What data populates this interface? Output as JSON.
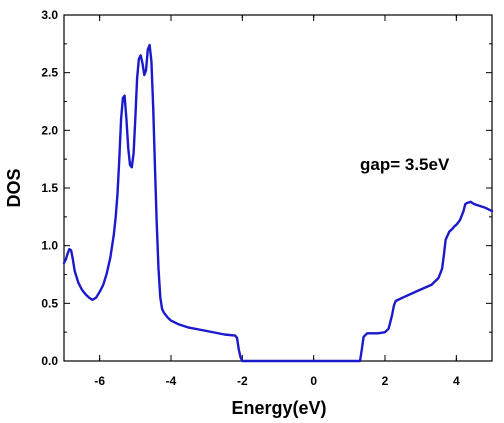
{
  "chart_data": {
    "type": "line",
    "title": "",
    "xlabel": "Energy(eV)",
    "ylabel": "DOS",
    "xlim": [
      -7,
      5
    ],
    "ylim": [
      0,
      3.0
    ],
    "x_ticks": [
      -6,
      -4,
      -2,
      0,
      2,
      4
    ],
    "x_tick_labels": [
      "-6",
      "-4",
      "-2",
      "0",
      "2",
      "4"
    ],
    "y_ticks": [
      0,
      0.5,
      1.0,
      1.5,
      2.0,
      2.5,
      3.0
    ],
    "y_tick_labels": [
      "0.0",
      "0.5",
      "1.0",
      "1.5",
      "2.0",
      "2.5",
      "3.0"
    ],
    "grid": false,
    "legend": "none",
    "annotation": "gap= 3.5eV",
    "line_color": "#1a1acc",
    "series": [
      {
        "x": [
          -7.0,
          -6.95,
          -6.9,
          -6.85,
          -6.8,
          -6.75,
          -6.7,
          -6.6,
          -6.5,
          -6.4,
          -6.3,
          -6.2,
          -6.1,
          -6.0,
          -5.9,
          -5.8,
          -5.7,
          -5.6,
          -5.55,
          -5.5,
          -5.45,
          -5.4,
          -5.35,
          -5.3,
          -5.25,
          -5.2,
          -5.15,
          -5.1,
          -5.05,
          -5.0,
          -4.95,
          -4.9,
          -4.85,
          -4.8,
          -4.75,
          -4.7,
          -4.65,
          -4.6,
          -4.55,
          -4.5,
          -4.45,
          -4.4,
          -4.35,
          -4.3,
          -4.25,
          -4.2,
          -4.1,
          -4.0,
          -3.8,
          -3.5,
          -3.0,
          -2.5,
          -2.2,
          -2.15,
          -2.1,
          -2.05,
          -2.0,
          1.3,
          1.35,
          1.4,
          1.5,
          1.8,
          2.0,
          2.1,
          2.2,
          2.25,
          2.3,
          2.5,
          3.0,
          3.3,
          3.5,
          3.6,
          3.65,
          3.7,
          3.8,
          3.9,
          3.95,
          4.0,
          4.1,
          4.2,
          4.25,
          4.3,
          4.4,
          4.5,
          4.6,
          4.8,
          5.0
        ],
        "y": [
          0.85,
          0.88,
          0.93,
          0.97,
          0.96,
          0.88,
          0.78,
          0.68,
          0.62,
          0.58,
          0.55,
          0.53,
          0.55,
          0.6,
          0.66,
          0.76,
          0.9,
          1.1,
          1.25,
          1.45,
          1.75,
          2.1,
          2.28,
          2.3,
          2.1,
          1.85,
          1.7,
          1.68,
          1.8,
          2.1,
          2.45,
          2.62,
          2.65,
          2.58,
          2.48,
          2.52,
          2.7,
          2.74,
          2.6,
          2.2,
          1.7,
          1.2,
          0.8,
          0.55,
          0.45,
          0.42,
          0.38,
          0.35,
          0.32,
          0.29,
          0.26,
          0.23,
          0.22,
          0.2,
          0.1,
          0.03,
          0.0,
          0.0,
          0.1,
          0.21,
          0.24,
          0.24,
          0.25,
          0.28,
          0.4,
          0.48,
          0.52,
          0.55,
          0.62,
          0.66,
          0.72,
          0.8,
          0.92,
          1.05,
          1.12,
          1.15,
          1.17,
          1.18,
          1.22,
          1.3,
          1.36,
          1.37,
          1.38,
          1.36,
          1.35,
          1.33,
          1.3
        ]
      }
    ]
  }
}
